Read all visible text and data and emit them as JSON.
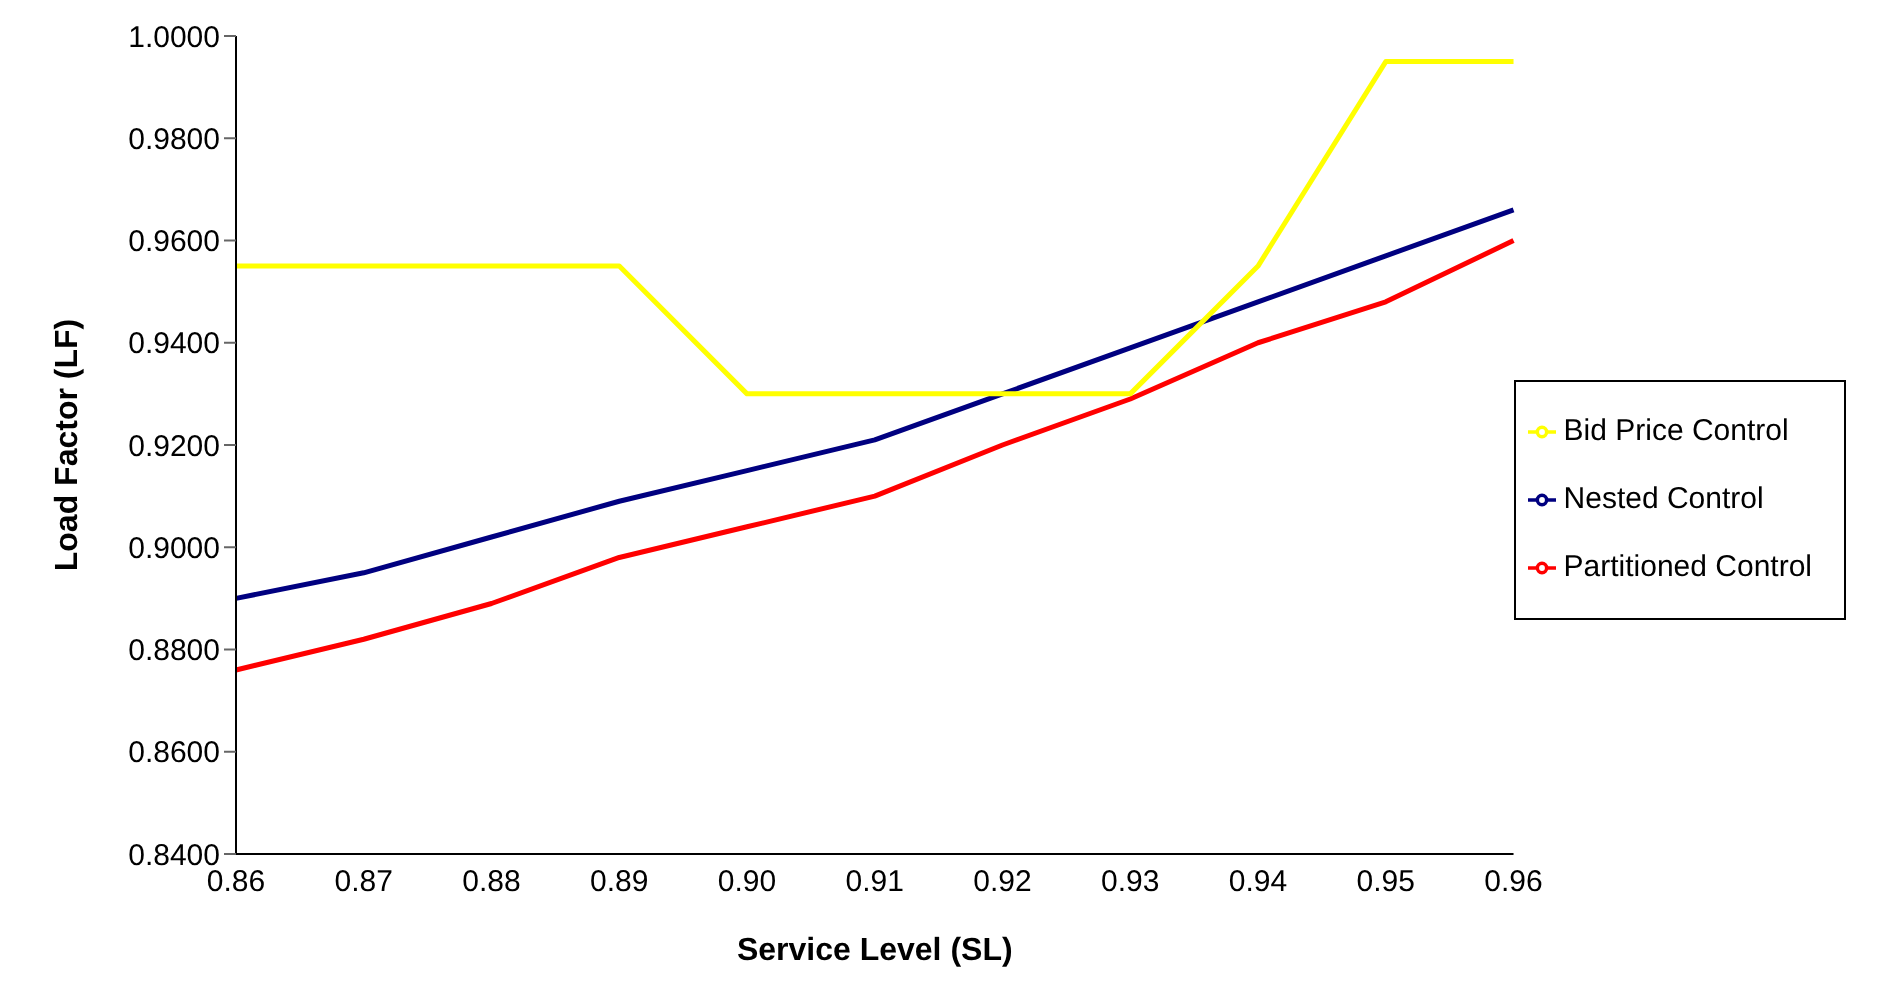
{
  "chart_data": {
    "type": "line",
    "xlabel": "Service Level (SL)",
    "ylabel": "Load Factor (LF)",
    "categories": [
      "0.86",
      "0.87",
      "0.88",
      "0.89",
      "0.90",
      "0.91",
      "0.92",
      "0.93",
      "0.94",
      "0.95",
      "0.96"
    ],
    "series": [
      {
        "name": "Partitioned  Control",
        "color": "#ff0000",
        "values": [
          0.876,
          0.882,
          0.889,
          0.898,
          0.904,
          0.91,
          0.92,
          0.929,
          0.94,
          0.948,
          0.96
        ]
      },
      {
        "name": "Nested  Control",
        "color": "#000080",
        "values": [
          0.89,
          0.895,
          0.902,
          0.909,
          0.915,
          0.921,
          0.93,
          0.939,
          0.948,
          0.957,
          0.966
        ]
      },
      {
        "name": "Bid Price Control",
        "color": "#ffff00",
        "values": [
          0.955,
          0.955,
          0.955,
          0.955,
          0.93,
          0.93,
          0.93,
          0.93,
          0.955,
          0.995,
          0.995
        ]
      }
    ],
    "ylim": [
      0.84,
      1.0
    ],
    "yticks": [
      {
        "value": 0.84,
        "label": "0.8400"
      },
      {
        "value": 0.86,
        "label": "0.8600"
      },
      {
        "value": 0.88,
        "label": "0.8800"
      },
      {
        "value": 0.9,
        "label": "0.9000"
      },
      {
        "value": 0.92,
        "label": "0.9200"
      },
      {
        "value": 0.94,
        "label": "0.9400"
      },
      {
        "value": 0.96,
        "label": "0.9600"
      },
      {
        "value": 0.98,
        "label": "0.9800"
      },
      {
        "value": 1.0,
        "label": "1.0000"
      }
    ],
    "grid": false,
    "legend": "right",
    "marker": "none",
    "line_style": "solid"
  }
}
